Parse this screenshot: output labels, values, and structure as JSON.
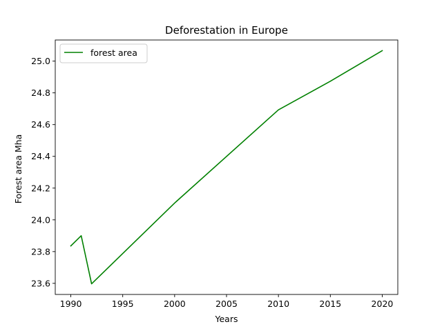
{
  "chart_data": {
    "type": "line",
    "title": "Deforestation in Europe",
    "xlabel": "Years",
    "ylabel": "Forest area Mha",
    "xlim": [
      1988.5,
      2021.5
    ],
    "ylim": [
      23.53,
      25.133
    ],
    "xticks": [
      1990,
      1995,
      2000,
      2005,
      2010,
      2015,
      2020
    ],
    "yticks": [
      23.6,
      23.8,
      24.0,
      24.2,
      24.4,
      24.6,
      24.8,
      25.0
    ],
    "grid": false,
    "legend_position": "top-left",
    "series": [
      {
        "name": "forest area",
        "color": "#008000",
        "x": [
          1990,
          1991,
          1992,
          2000,
          2010,
          2015,
          2020
        ],
        "y": [
          23.836,
          23.9,
          23.597,
          24.106,
          24.693,
          24.873,
          25.066
        ]
      }
    ]
  }
}
